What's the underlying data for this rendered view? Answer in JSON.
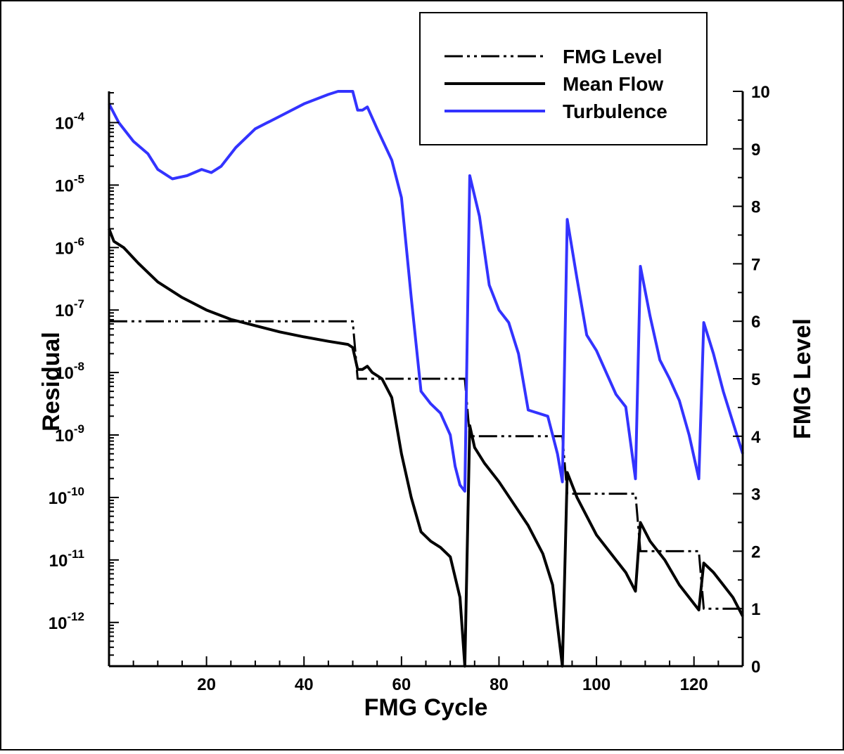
{
  "chart_data": {
    "type": "line",
    "xlabel": "FMG Cycle",
    "ylabel": "Residual",
    "y2label": "FMG Level",
    "xlim": [
      0,
      130
    ],
    "ylim_log10": [
      -12.7,
      -3.5
    ],
    "y2lim": [
      0,
      10
    ],
    "y_scale": "log",
    "grid": false,
    "legend_position": "top-right",
    "x_ticks": [
      20,
      40,
      60,
      80,
      100,
      120
    ],
    "y_ticks": [
      {
        "base": "10",
        "exp": "-4",
        "value": -4
      },
      {
        "base": "10",
        "exp": "-5",
        "value": -5
      },
      {
        "base": "10",
        "exp": "-6",
        "value": -6
      },
      {
        "base": "10",
        "exp": "-7",
        "value": -7
      },
      {
        "base": "10",
        "exp": "-8",
        "value": -8
      },
      {
        "base": "10",
        "exp": "-9",
        "value": -9
      },
      {
        "base": "10",
        "exp": "-10",
        "value": -10
      },
      {
        "base": "10",
        "exp": "-11",
        "value": -11
      },
      {
        "base": "10",
        "exp": "-12",
        "value": -12
      }
    ],
    "y2_ticks": [
      0,
      1,
      2,
      3,
      4,
      5,
      6,
      7,
      8,
      9,
      10
    ],
    "series": [
      {
        "name": "FMG Level",
        "axis": "right",
        "color": "#000000",
        "style": "dash-dot-dot",
        "points": [
          [
            0,
            6
          ],
          [
            50,
            6
          ],
          [
            51,
            5
          ],
          [
            73,
            5
          ],
          [
            74,
            4
          ],
          [
            93,
            4
          ],
          [
            94,
            3
          ],
          [
            108,
            3
          ],
          [
            109,
            2
          ],
          [
            121,
            2
          ],
          [
            122,
            1
          ],
          [
            130,
            1
          ]
        ]
      },
      {
        "name": "Mean Flow",
        "axis": "left",
        "color": "#000000",
        "style": "solid",
        "points": [
          [
            0,
            -5.7
          ],
          [
            1,
            -5.9
          ],
          [
            3,
            -6.0
          ],
          [
            6,
            -6.25
          ],
          [
            10,
            -6.55
          ],
          [
            15,
            -6.8
          ],
          [
            20,
            -7.0
          ],
          [
            25,
            -7.15
          ],
          [
            30,
            -7.25
          ],
          [
            35,
            -7.35
          ],
          [
            40,
            -7.43
          ],
          [
            45,
            -7.5
          ],
          [
            49,
            -7.55
          ],
          [
            50,
            -7.6
          ],
          [
            51,
            -7.95
          ],
          [
            52,
            -7.95
          ],
          [
            53,
            -7.9
          ],
          [
            54,
            -8.0
          ],
          [
            56,
            -8.1
          ],
          [
            58,
            -8.4
          ],
          [
            60,
            -9.3
          ],
          [
            62,
            -10.0
          ],
          [
            64,
            -10.55
          ],
          [
            66,
            -10.7
          ],
          [
            68,
            -10.8
          ],
          [
            70,
            -10.95
          ],
          [
            72,
            -11.6
          ],
          [
            73,
            -12.7
          ],
          [
            74,
            -8.85
          ],
          [
            75,
            -9.2
          ],
          [
            77,
            -9.45
          ],
          [
            80,
            -9.75
          ],
          [
            83,
            -10.1
          ],
          [
            86,
            -10.45
          ],
          [
            89,
            -10.9
          ],
          [
            91,
            -11.4
          ],
          [
            93,
            -12.7
          ],
          [
            94,
            -9.6
          ],
          [
            96,
            -10.0
          ],
          [
            98,
            -10.3
          ],
          [
            100,
            -10.6
          ],
          [
            103,
            -10.9
          ],
          [
            106,
            -11.2
          ],
          [
            108,
            -11.5
          ],
          [
            109,
            -10.4
          ],
          [
            111,
            -10.7
          ],
          [
            114,
            -11.0
          ],
          [
            117,
            -11.4
          ],
          [
            120,
            -11.7
          ],
          [
            121,
            -11.8
          ],
          [
            122,
            -11.05
          ],
          [
            124,
            -11.2
          ],
          [
            126,
            -11.4
          ],
          [
            128,
            -11.6
          ],
          [
            130,
            -11.9
          ]
        ]
      },
      {
        "name": "Turbulence",
        "axis": "left",
        "color": "#3333ff",
        "style": "solid",
        "points": [
          [
            0,
            -3.7
          ],
          [
            2,
            -4.0
          ],
          [
            5,
            -4.3
          ],
          [
            8,
            -4.5
          ],
          [
            10,
            -4.75
          ],
          [
            13,
            -4.9
          ],
          [
            16,
            -4.85
          ],
          [
            19,
            -4.75
          ],
          [
            21,
            -4.8
          ],
          [
            23,
            -4.7
          ],
          [
            26,
            -4.4
          ],
          [
            30,
            -4.1
          ],
          [
            35,
            -3.9
          ],
          [
            40,
            -3.7
          ],
          [
            45,
            -3.55
          ],
          [
            47,
            -3.5
          ],
          [
            49,
            -3.5
          ],
          [
            50,
            -3.5
          ],
          [
            51,
            -3.8
          ],
          [
            52,
            -3.8
          ],
          [
            53,
            -3.75
          ],
          [
            55,
            -4.1
          ],
          [
            58,
            -4.6
          ],
          [
            60,
            -5.2
          ],
          [
            62,
            -6.8
          ],
          [
            64,
            -8.3
          ],
          [
            66,
            -8.5
          ],
          [
            68,
            -8.65
          ],
          [
            70,
            -9.0
          ],
          [
            71,
            -9.5
          ],
          [
            72,
            -9.8
          ],
          [
            73,
            -9.9
          ],
          [
            74,
            -4.85
          ],
          [
            76,
            -5.5
          ],
          [
            78,
            -6.6
          ],
          [
            80,
            -7.0
          ],
          [
            82,
            -7.2
          ],
          [
            84,
            -7.7
          ],
          [
            86,
            -8.6
          ],
          [
            88,
            -8.65
          ],
          [
            90,
            -8.7
          ],
          [
            92,
            -9.3
          ],
          [
            93,
            -9.75
          ],
          [
            94,
            -5.55
          ],
          [
            96,
            -6.5
          ],
          [
            98,
            -7.4
          ],
          [
            100,
            -7.65
          ],
          [
            102,
            -8.0
          ],
          [
            104,
            -8.35
          ],
          [
            106,
            -8.55
          ],
          [
            108,
            -9.7
          ],
          [
            109,
            -6.3
          ],
          [
            111,
            -7.1
          ],
          [
            113,
            -7.8
          ],
          [
            115,
            -8.1
          ],
          [
            117,
            -8.45
          ],
          [
            119,
            -9.0
          ],
          [
            121,
            -9.7
          ],
          [
            122,
            -7.2
          ],
          [
            124,
            -7.7
          ],
          [
            126,
            -8.3
          ],
          [
            128,
            -8.8
          ],
          [
            130,
            -9.3
          ]
        ]
      }
    ]
  }
}
